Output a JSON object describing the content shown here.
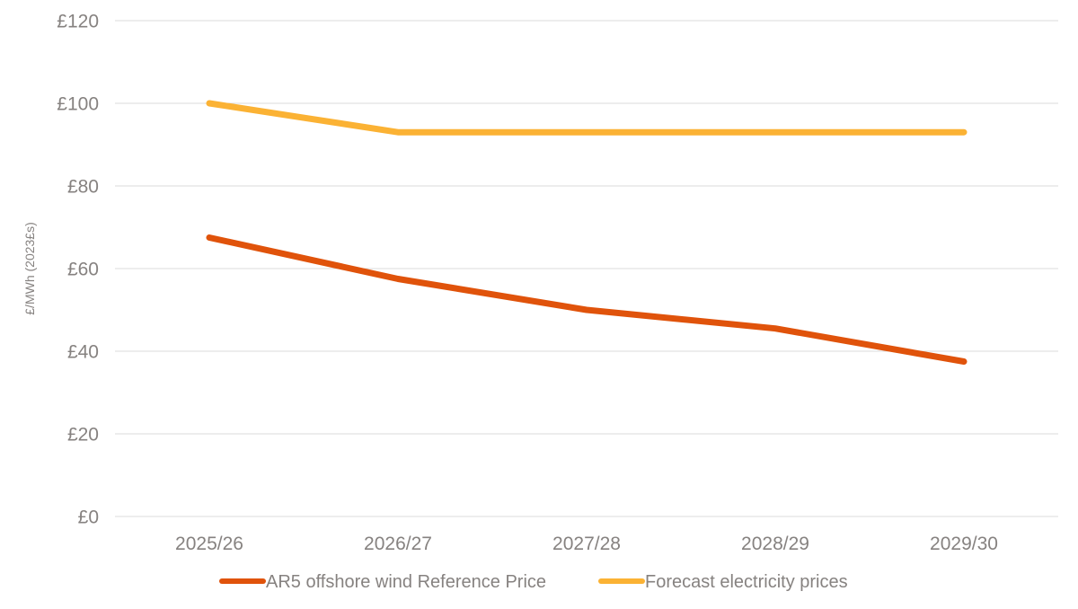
{
  "chart_data": {
    "type": "line",
    "title": "",
    "categories": [
      "2025/26",
      "2026/27",
      "2027/28",
      "2028/29",
      "2029/30"
    ],
    "series": [
      {
        "name": "AR5 offshore wind Reference Price",
        "color": "#E0530B",
        "values": [
          67.5,
          57.5,
          50,
          45.5,
          37.5
        ]
      },
      {
        "name": "Forecast electricity prices",
        "color": "#FBB234",
        "values": [
          100,
          93,
          93,
          93,
          93
        ]
      }
    ],
    "xlabel": "",
    "ylabel": "£/MWh (2023£s)",
    "ylim": [
      0,
      120
    ],
    "ytick_step": 20,
    "ytick_labels": [
      "£0",
      "£20",
      "£40",
      "£60",
      "£80",
      "£100",
      "£120"
    ],
    "grid": true,
    "legend_position": "bottom",
    "colors": {
      "gridline": "#DBDBDB",
      "axis_text": "#868280",
      "background": "#FFFFFF"
    }
  }
}
